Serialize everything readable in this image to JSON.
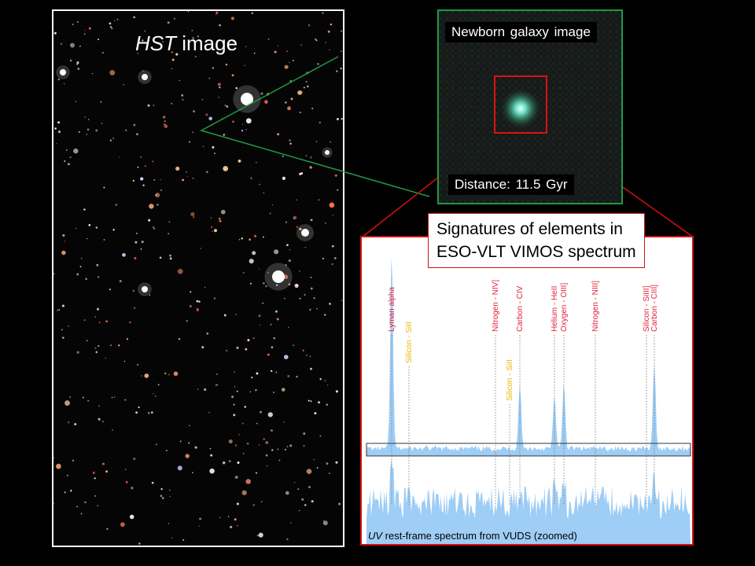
{
  "hst": {
    "title_italic": "HST",
    "title_rest": " image"
  },
  "zoom": {
    "title": "Newborn galaxy image",
    "distance": "Distance: 11.5 Gyr"
  },
  "spectrum": {
    "title_line1": "Signatures of elements in",
    "title_line2": "ESO-VLT VIMOS spectrum",
    "caption_italic": "UV",
    "caption_rest": " rest-frame spectrum from VUDS (zoomed)",
    "lines": [
      {
        "label": "Lyman alpha",
        "color": "#e0203a"
      },
      {
        "label": "Silicon - SiII",
        "color": "#e8b800"
      },
      {
        "label": "Nitrogen - NIV]",
        "color": "#e0203a"
      },
      {
        "label": "Silicon - SiII",
        "color": "#e8b800"
      },
      {
        "label": "Carbon - CIV",
        "color": "#e0203a"
      },
      {
        "label": "Helium - HeII",
        "color": "#e0203a"
      },
      {
        "label": "Oxygen - OIII]",
        "color": "#e0203a"
      },
      {
        "label": "Nitrogen - NIII]",
        "color": "#e0203a"
      },
      {
        "label": "Silicon - SiIII]",
        "color": "#e0203a"
      },
      {
        "label": "Carbon - CIII]",
        "color": "#e0203a"
      }
    ]
  },
  "colors": {
    "green_frame": "#1f9a47",
    "red_frame": "#d01010",
    "spectrum_fill": "#9ecdf5"
  }
}
